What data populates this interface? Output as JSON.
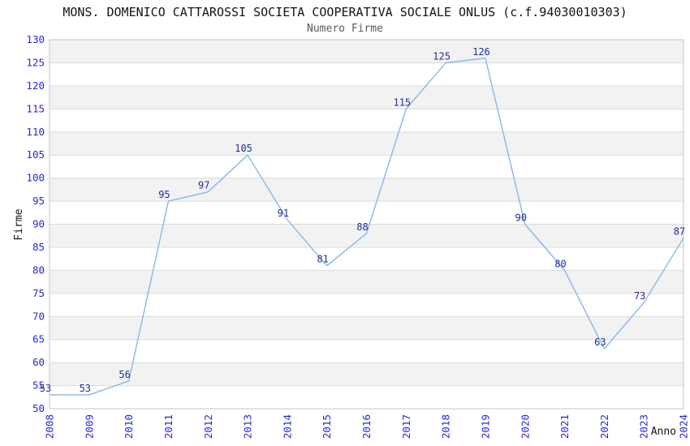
{
  "title": "MONS. DOMENICO CATTAROSSI SOCIETA COOPERATIVA SOCIALE ONLUS (c.f.94030010303)",
  "subtitle": "Numero Firme",
  "chart_data": {
    "type": "line",
    "title": "MONS. DOMENICO CATTAROSSI SOCIETA COOPERATIVA SOCIALE ONLUS (c.f.94030010303)",
    "subtitle": "Numero Firme",
    "xlabel": "Anno",
    "ylabel": "Firme",
    "x": [
      2008,
      2009,
      2010,
      2011,
      2012,
      2013,
      2014,
      2015,
      2016,
      2017,
      2018,
      2019,
      2020,
      2021,
      2022,
      2023,
      2024
    ],
    "series": [
      {
        "name": "Numero Firme",
        "values": [
          53,
          53,
          56,
          95,
          97,
          105,
          91,
          81,
          88,
          115,
          125,
          126,
          90,
          80,
          63,
          73,
          87
        ]
      }
    ],
    "ylim": [
      50,
      130
    ],
    "ytick_step": 5,
    "grid": true,
    "banded_background": true,
    "legend_position": "none",
    "point_labels_visible": true,
    "colors": {
      "line": "#88b7e8",
      "tick_labels": "#2727d8",
      "point_labels": "#1e2f9e",
      "band": "#f2f2f2",
      "gridline": "#dcdcdc",
      "border": "#c4c4c4",
      "axis_title": "#141414",
      "title": "#141414",
      "subtitle": "#595959",
      "background": "#ffffff"
    }
  }
}
